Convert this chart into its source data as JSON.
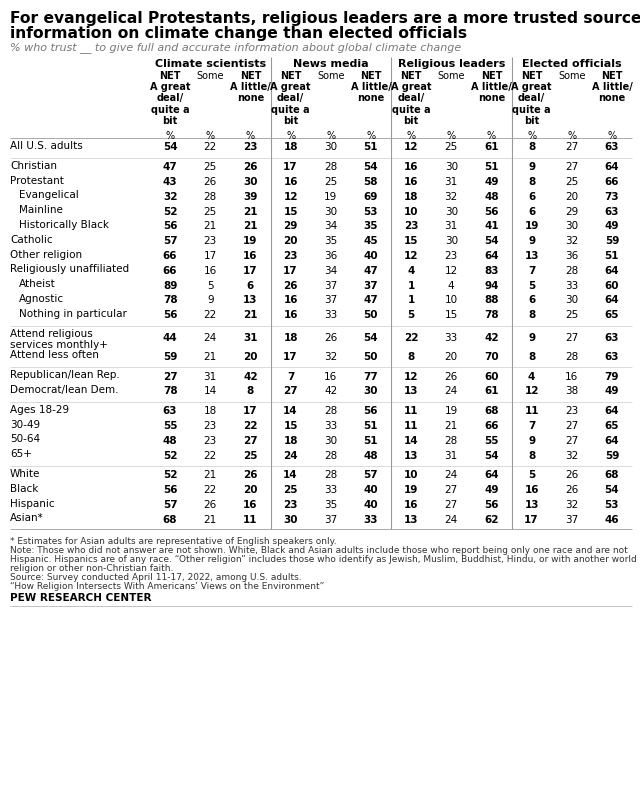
{
  "title_line1": "For evangelical Protestants, religious leaders are a more trusted source of",
  "title_line2": "information on climate change than elected officials",
  "subtitle": "% who trust __ to give full and accurate information about global climate change",
  "section_headers": [
    "Climate scientists",
    "News media",
    "Religious leaders",
    "Elected officials"
  ],
  "rows": [
    {
      "label": "All U.S. adults",
      "indent": 0,
      "values": [
        54,
        22,
        23,
        18,
        30,
        51,
        12,
        25,
        61,
        8,
        27,
        63
      ],
      "separator_above": false
    },
    {
      "label": "Christian",
      "indent": 0,
      "values": [
        47,
        25,
        26,
        17,
        28,
        54,
        16,
        30,
        51,
        9,
        27,
        64
      ],
      "separator_above": true
    },
    {
      "label": "Protestant",
      "indent": 0,
      "values": [
        43,
        26,
        30,
        16,
        25,
        58,
        16,
        31,
        49,
        8,
        25,
        66
      ],
      "separator_above": false
    },
    {
      "label": "Evangelical",
      "indent": 1,
      "values": [
        32,
        28,
        39,
        12,
        19,
        69,
        18,
        32,
        48,
        6,
        20,
        73
      ],
      "separator_above": false
    },
    {
      "label": "Mainline",
      "indent": 1,
      "values": [
        52,
        25,
        21,
        15,
        30,
        53,
        10,
        30,
        56,
        6,
        29,
        63
      ],
      "separator_above": false
    },
    {
      "label": "Historically Black",
      "indent": 1,
      "values": [
        56,
        21,
        21,
        29,
        34,
        35,
        23,
        31,
        41,
        19,
        30,
        49
      ],
      "separator_above": false
    },
    {
      "label": "Catholic",
      "indent": 0,
      "values": [
        57,
        23,
        19,
        20,
        35,
        45,
        15,
        30,
        54,
        9,
        32,
        59
      ],
      "separator_above": false
    },
    {
      "label": "Other religion",
      "indent": 0,
      "values": [
        66,
        17,
        16,
        23,
        36,
        40,
        12,
        23,
        64,
        13,
        36,
        51
      ],
      "separator_above": false
    },
    {
      "label": "Religiously unaffiliated",
      "indent": 0,
      "values": [
        66,
        16,
        17,
        17,
        34,
        47,
        4,
        12,
        83,
        7,
        28,
        64
      ],
      "separator_above": false
    },
    {
      "label": "Atheist",
      "indent": 1,
      "values": [
        89,
        5,
        6,
        26,
        37,
        37,
        1,
        4,
        94,
        5,
        33,
        60
      ],
      "separator_above": false
    },
    {
      "label": "Agnostic",
      "indent": 1,
      "values": [
        78,
        9,
        13,
        16,
        37,
        47,
        1,
        10,
        88,
        6,
        30,
        64
      ],
      "separator_above": false
    },
    {
      "label": "Nothing in particular",
      "indent": 1,
      "values": [
        56,
        22,
        21,
        16,
        33,
        50,
        5,
        15,
        78,
        8,
        25,
        65
      ],
      "separator_above": false
    },
    {
      "label": "Attend religious\nservices monthly+",
      "indent": 0,
      "values": [
        44,
        24,
        31,
        18,
        26,
        54,
        22,
        33,
        42,
        9,
        27,
        63
      ],
      "separator_above": true
    },
    {
      "label": "Attend less often",
      "indent": 0,
      "values": [
        59,
        21,
        20,
        17,
        32,
        50,
        8,
        20,
        70,
        8,
        28,
        63
      ],
      "separator_above": false
    },
    {
      "label": "Republican/lean Rep.",
      "indent": 0,
      "values": [
        27,
        31,
        42,
        7,
        16,
        77,
        12,
        26,
        60,
        4,
        16,
        79
      ],
      "separator_above": true
    },
    {
      "label": "Democrat/lean Dem.",
      "indent": 0,
      "values": [
        78,
        14,
        8,
        27,
        42,
        30,
        13,
        24,
        61,
        12,
        38,
        49
      ],
      "separator_above": false
    },
    {
      "label": "Ages 18-29",
      "indent": 0,
      "values": [
        63,
        18,
        17,
        14,
        28,
        56,
        11,
        19,
        68,
        11,
        23,
        64
      ],
      "separator_above": true
    },
    {
      "label": "30-49",
      "indent": 0,
      "values": [
        55,
        23,
        22,
        15,
        33,
        51,
        11,
        21,
        66,
        7,
        27,
        65
      ],
      "separator_above": false
    },
    {
      "label": "50-64",
      "indent": 0,
      "values": [
        48,
        23,
        27,
        18,
        30,
        51,
        14,
        28,
        55,
        9,
        27,
        64
      ],
      "separator_above": false
    },
    {
      "label": "65+",
      "indent": 0,
      "values": [
        52,
        22,
        25,
        24,
        28,
        48,
        13,
        31,
        54,
        8,
        32,
        59
      ],
      "separator_above": false
    },
    {
      "label": "White",
      "indent": 0,
      "values": [
        52,
        21,
        26,
        14,
        28,
        57,
        10,
        24,
        64,
        5,
        26,
        68
      ],
      "separator_above": true
    },
    {
      "label": "Black",
      "indent": 0,
      "values": [
        56,
        22,
        20,
        25,
        33,
        40,
        19,
        27,
        49,
        16,
        26,
        54
      ],
      "separator_above": false
    },
    {
      "label": "Hispanic",
      "indent": 0,
      "values": [
        57,
        26,
        16,
        23,
        35,
        40,
        16,
        27,
        56,
        13,
        32,
        53
      ],
      "separator_above": false
    },
    {
      "label": "Asian*",
      "indent": 0,
      "values": [
        68,
        21,
        11,
        30,
        37,
        33,
        13,
        24,
        62,
        17,
        37,
        46
      ],
      "separator_above": false
    }
  ],
  "footnote_lines": [
    "* Estimates for Asian adults are representative of English speakers only.",
    "Note: Those who did not answer are not shown. White, Black and Asian adults include those who report being only one race and are not",
    "Hispanic. Hispanics are of any race. “Other religion” includes those who identify as Jewish, Muslim, Buddhist, Hindu, or with another world",
    "religion or other non-Christian faith.",
    "Source: Survey conducted April 11-17, 2022, among U.S. adults.",
    "“How Religion Intersects With Americans’ Views on the Environment”"
  ],
  "pew_label": "PEW RESEARCH CENTER",
  "bg_color": "#ffffff",
  "text_color": "#000000",
  "subtitle_color": "#777777",
  "footnote_color": "#333333",
  "line_color": "#aaaaaa",
  "vsep_color": "#999999"
}
